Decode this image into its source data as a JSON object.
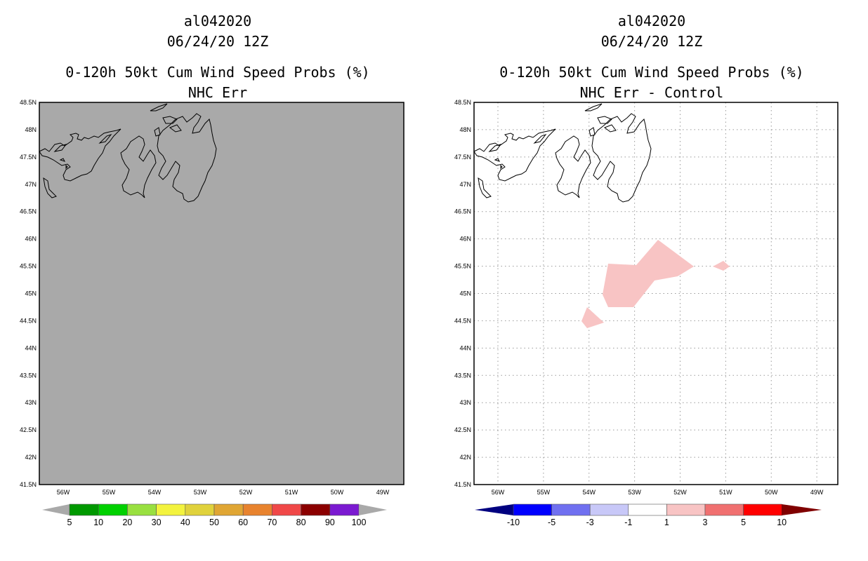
{
  "panels": [
    {
      "storm_id": "al042020",
      "datetime": "06/24/20 12Z",
      "product_title": "0-120h 50kt Cum Wind Speed Probs (%)",
      "subtitle": "NHC Err",
      "background": "#a9a9a9",
      "lat_labels": [
        "48.5N",
        "48N",
        "47.5N",
        "47N",
        "46.5N",
        "46N",
        "45.5N",
        "45N",
        "44.5N",
        "44N",
        "43.5N",
        "43N",
        "42.5N",
        "42N",
        "41.5N"
      ],
      "lon_labels": [
        "56W",
        "55W",
        "54W",
        "53W",
        "52W",
        "51W",
        "50W",
        "49W"
      ],
      "colorbar": {
        "colors": [
          "#009900",
          "#00d100",
          "#99e040",
          "#f3f33e",
          "#e0d23c",
          "#e0a634",
          "#e8832e",
          "#f04848",
          "#8b0000",
          "#7b1ad1"
        ],
        "labels": [
          "5",
          "10",
          "20",
          "30",
          "40",
          "50",
          "60",
          "70",
          "80",
          "90",
          "100"
        ]
      }
    },
    {
      "storm_id": "al042020",
      "datetime": "06/24/20 12Z",
      "product_title": "0-120h 50kt Cum Wind Speed Probs (%)",
      "subtitle": "NHC Err - Control",
      "background": "#ffffff",
      "lat_labels": [
        "48.5N",
        "48N",
        "47.5N",
        "47N",
        "46.5N",
        "46N",
        "45.5N",
        "45N",
        "44.5N",
        "44N",
        "43.5N",
        "43N",
        "42.5N",
        "42N",
        "41.5N"
      ],
      "lon_labels": [
        "56W",
        "55W",
        "54W",
        "53W",
        "52W",
        "51W",
        "50W",
        "49W"
      ],
      "colorbar": {
        "colors": [
          "#000080",
          "#0000ff",
          "#7070f0",
          "#c8c8f8",
          "#ffffff",
          "#f8c4c4",
          "#f07070",
          "#ff0000",
          "#800000"
        ],
        "labels": [
          "-10",
          "-5",
          "-3",
          "-1",
          "1",
          "3",
          "5",
          "10"
        ]
      },
      "shading_color": "#f8c4c4"
    }
  ]
}
